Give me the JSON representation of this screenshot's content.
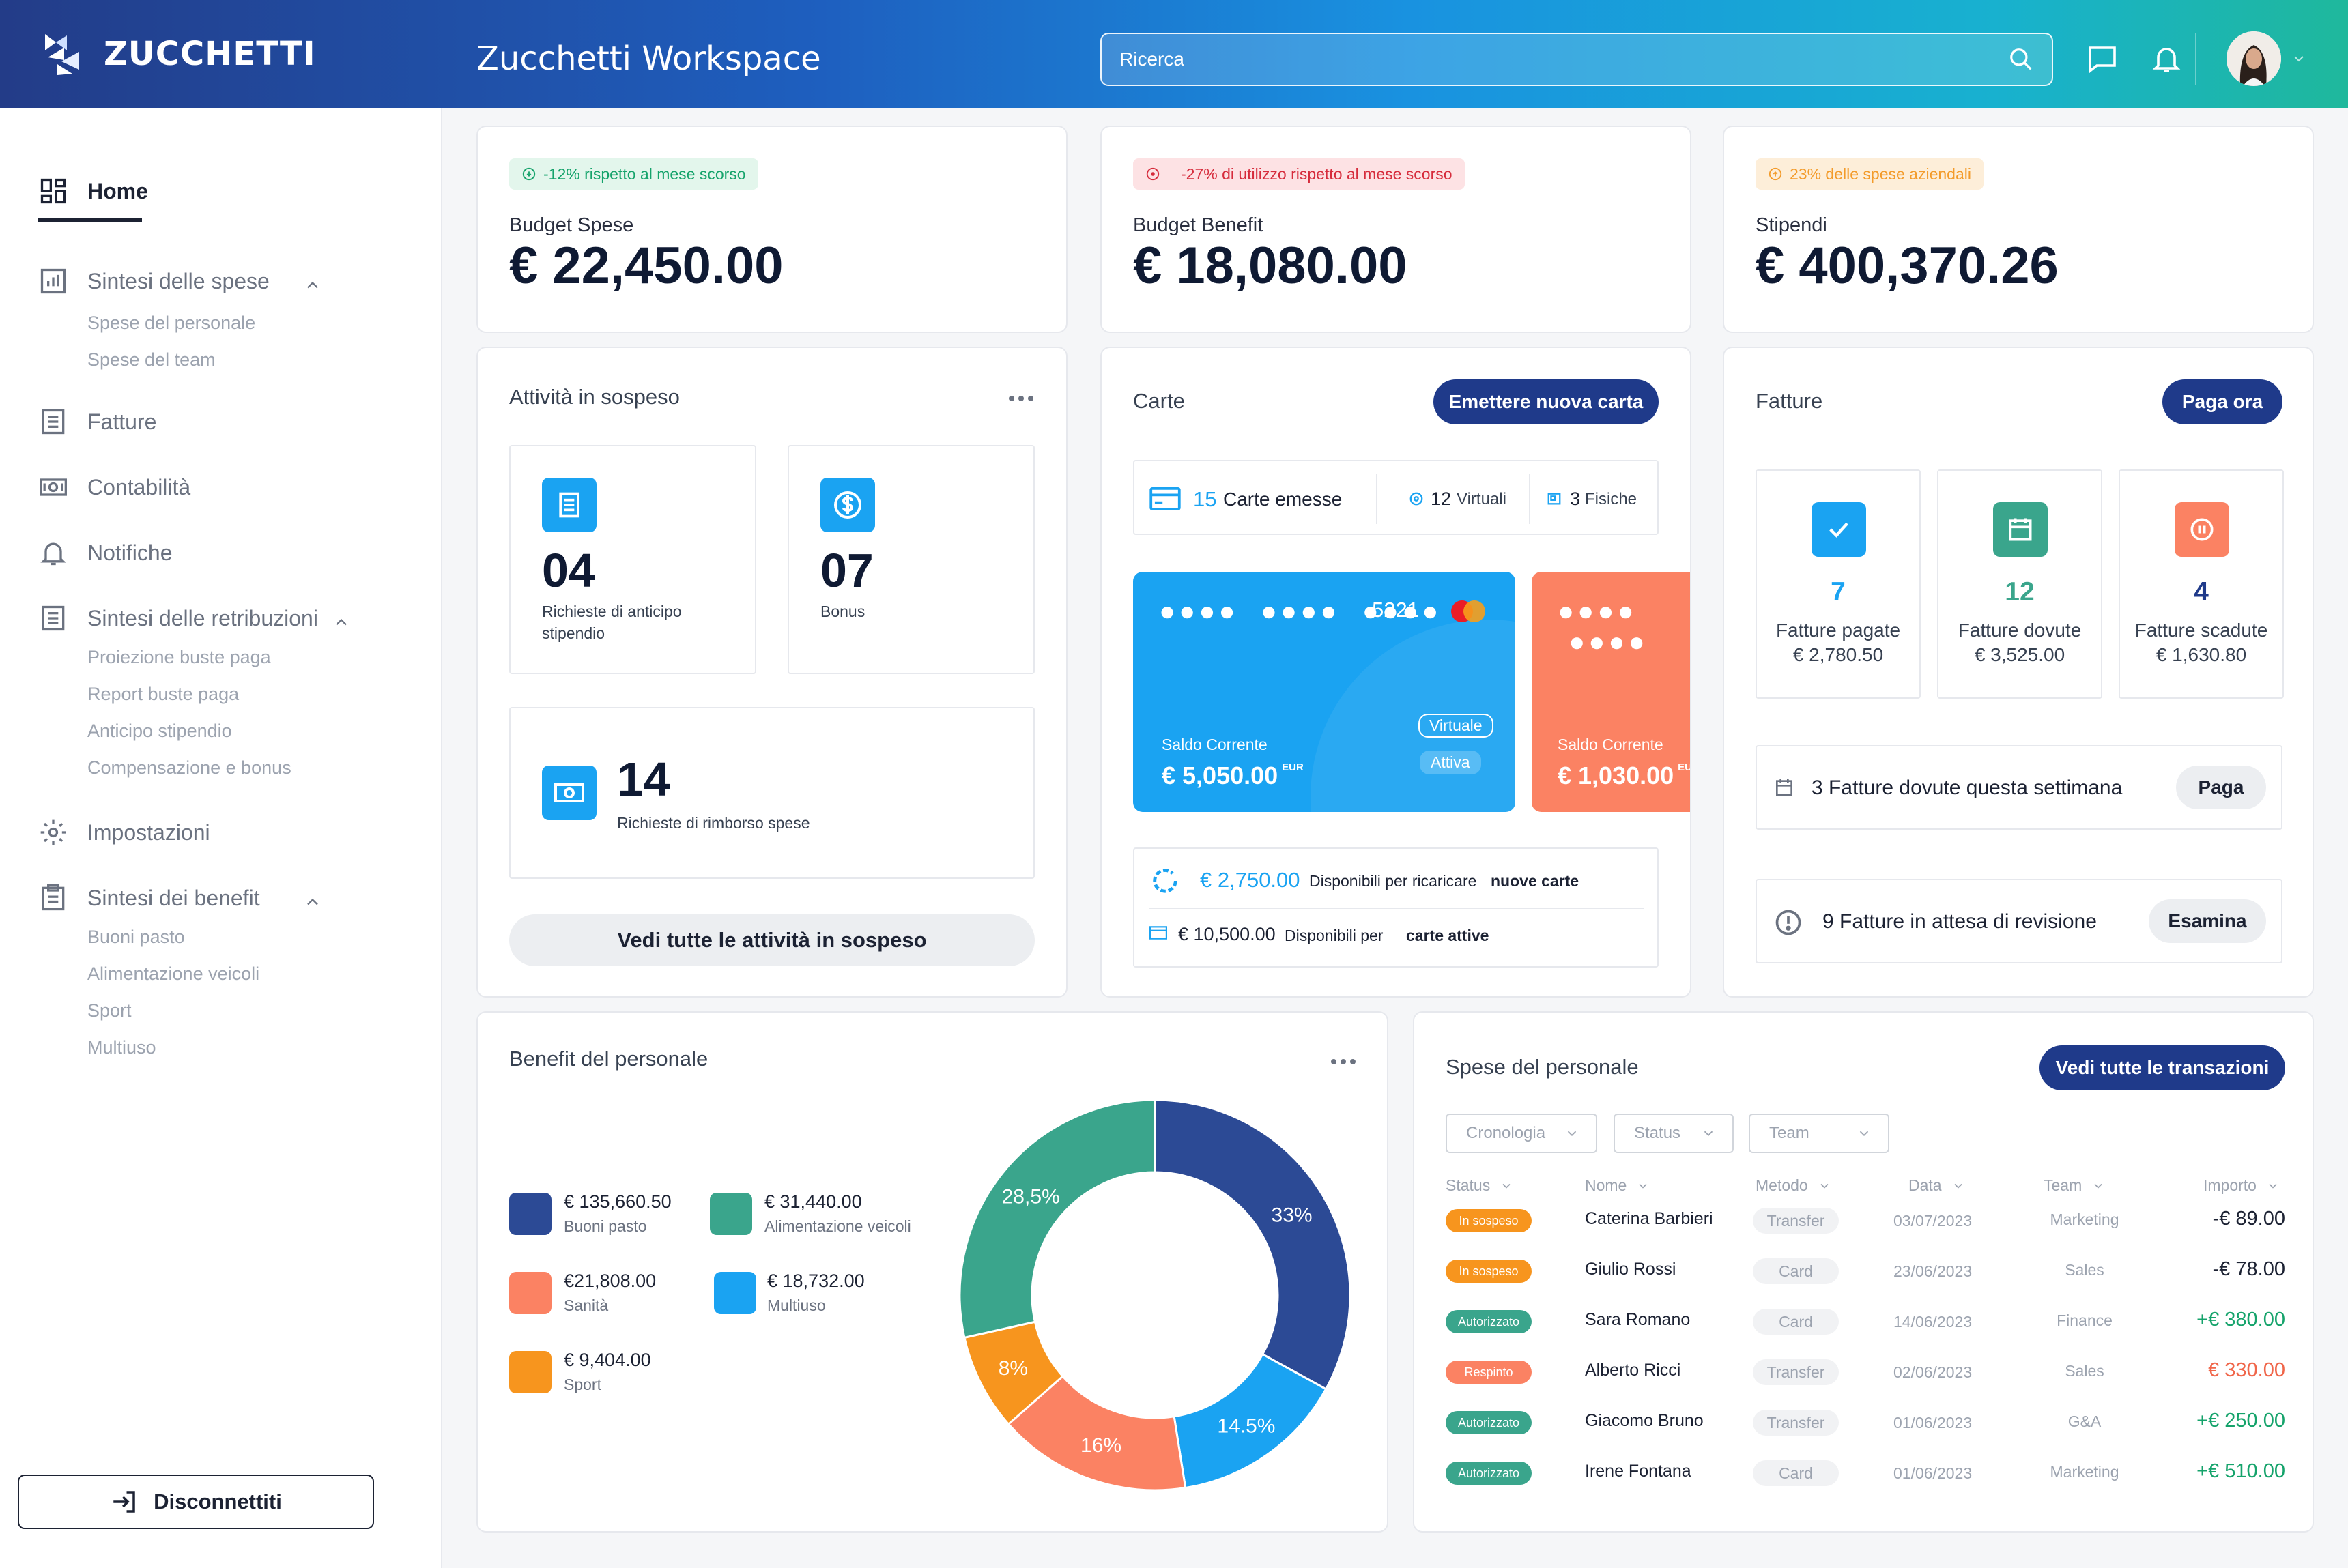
{
  "header": {
    "logo_text": "ZUCCHETTI",
    "app_title": "Zucchetti Workspace",
    "search_placeholder": "Ricerca"
  },
  "sidebar": {
    "home": "Home",
    "sintesi_spese": {
      "label": "Sintesi delle spese",
      "subs": [
        "Spese del personale",
        "Spese del team"
      ]
    },
    "fatture": "Fatture",
    "contabilita": "Contabilità",
    "notifiche": "Notifiche",
    "sintesi_retribuzioni": {
      "label": "Sintesi delle retribuzioni",
      "subs": [
        "Proiezione buste paga",
        "Report buste paga",
        "Anticipo stipendio",
        "Compensazione e bonus"
      ]
    },
    "impostazioni": "Impostazioni",
    "sintesi_benefit": {
      "label": "Sintesi dei benefit",
      "subs": [
        "Buoni pasto",
        "Alimentazione veicoli",
        "Sport",
        "Multiuso"
      ]
    },
    "logout": "Disconnettiti"
  },
  "stats": [
    {
      "badge": "-12% rispetto al mese scorso",
      "badge_color": "#15a36b",
      "badge_bg": "#e3f6ec",
      "label": "Budget Spese",
      "value": "€ 22,450.00"
    },
    {
      "badge": "-27% di utilizzo rispetto al mese scorso",
      "badge_color": "#d62c3c",
      "badge_bg": "#fde2e4",
      "label": "Budget Benefit",
      "value": "€ 18,080.00"
    },
    {
      "badge": "23% delle spese aziendali",
      "badge_color": "#f39b2a",
      "badge_bg": "#fdeed9",
      "label": "Stipendi",
      "value": "€ 400,370.26"
    }
  ],
  "attivita": {
    "title": "Attività in sospeso",
    "anticipo": {
      "num": "04",
      "label": "Richieste di anticipo stipendio"
    },
    "bonus": {
      "num": "07",
      "label": "Bonus"
    },
    "rimborso": {
      "num": "14",
      "label": "Richieste di rimborso spese"
    },
    "button": "Vedi tutte le attività in sospeso"
  },
  "carte": {
    "title": "Carte",
    "button": "Emettere nuova carta",
    "emesse_count": "15",
    "emesse_label": "Carte emesse",
    "virtuali_count": "12",
    "virtuali_label": "Virtuali",
    "fisiche_count": "3",
    "fisiche_label": "Fisiche",
    "card1": {
      "last4": "5221",
      "balance_label": "Saldo Corrente",
      "balance": "€ 5,050.00",
      "currency": "EUR",
      "tag1": "Virtuale",
      "tag2": "Attiva",
      "color": "#1aa3f2"
    },
    "card2": {
      "balance_label": "Saldo Corrente",
      "balance": "€ 1,030.00",
      "currency": "EUR",
      "color": "#fb8263"
    },
    "ricarica": {
      "amount": "€ 2,750.00",
      "text": "Disponibili per ricaricare",
      "bold": "nuove carte"
    },
    "attive": {
      "amount": "€ 10,500.00",
      "text": "Disponibili per",
      "bold": "carte attive"
    }
  },
  "fatture": {
    "title": "Fatture",
    "button": "Paga ora",
    "tiles": [
      {
        "num": "7",
        "label": "Fatture pagate",
        "amount": "€ 2,780.50",
        "color": "#1aa3f2"
      },
      {
        "num": "12",
        "label": "Fatture dovute",
        "amount": "€ 3,525.00",
        "color": "#3aa58c"
      },
      {
        "num": "4",
        "label": "Fatture scadute",
        "amount": "€ 1,630.80",
        "color": "#1f3a8a"
      }
    ],
    "settimana": {
      "text": "3 Fatture dovute questa settimana",
      "button": "Paga"
    },
    "revisione": {
      "text": "9 Fatture in attesa di revisione",
      "button": "Esamina"
    }
  },
  "benefit": {
    "title": "Benefit del personale",
    "legend": [
      {
        "value": "€ 135,660.50",
        "label": "Buoni pasto",
        "color": "#2c4a95"
      },
      {
        "value": "€ 31,440.00",
        "label": "Alimentazione veicoli",
        "color": "#3aa58c"
      },
      {
        "value": "€21,808.00",
        "label": "Sanità",
        "color": "#fb8263"
      },
      {
        "value": "€ 18,732.00",
        "label": "Multiuso",
        "color": "#1aa3f2"
      },
      {
        "value": "€ 9,404.00",
        "label": "Sport",
        "color": "#f7951e"
      }
    ],
    "donut": [
      {
        "label": "33%",
        "value": 33,
        "color": "#2c4a95"
      },
      {
        "label": "14.5%",
        "value": 14.5,
        "color": "#1aa3f2"
      },
      {
        "label": "16%",
        "value": 16,
        "color": "#fb8263"
      },
      {
        "label": "8%",
        "value": 8,
        "color": "#f7951e"
      },
      {
        "label": "28,5%",
        "value": 28.5,
        "color": "#3aa58c"
      }
    ]
  },
  "spese": {
    "title": "Spese del personale",
    "button": "Vedi tutte le transazioni",
    "filters": [
      "Cronologia",
      "Status",
      "Team"
    ],
    "columns": [
      "Status",
      "Nome",
      "Metodo",
      "Data",
      "Team",
      "Importo"
    ],
    "rows": [
      {
        "status": "In sospeso",
        "status_color": "#f7951e",
        "name": "Caterina Barbieri",
        "method": "Transfer",
        "date": "03/07/2023",
        "team": "Marketing",
        "amount": "-€ 89.00",
        "amount_color": "#1c2233"
      },
      {
        "status": "In sospeso",
        "status_color": "#f7951e",
        "name": "Giulio Rossi",
        "method": "Card",
        "date": "23/06/2023",
        "team": "Sales",
        "amount": "-€ 78.00",
        "amount_color": "#1c2233"
      },
      {
        "status": "Autorizzato",
        "status_color": "#3aa58c",
        "name": "Sara Romano",
        "method": "Card",
        "date": "14/06/2023",
        "team": "Finance",
        "amount": "+€ 380.00",
        "amount_color": "#15a36b"
      },
      {
        "status": "Respinto",
        "status_color": "#fb8263",
        "name": "Alberto Ricci",
        "method": "Transfer",
        "date": "02/06/2023",
        "team": "Sales",
        "amount": "€ 330.00",
        "amount_color": "#f0664a"
      },
      {
        "status": "Autorizzato",
        "status_color": "#3aa58c",
        "name": "Giacomo Bruno",
        "method": "Transfer",
        "date": "01/06/2023",
        "team": "G&A",
        "amount": "+€ 250.00",
        "amount_color": "#15a36b"
      },
      {
        "status": "Autorizzato",
        "status_color": "#3aa58c",
        "name": "Irene Fontana",
        "method": "Card",
        "date": "01/06/2023",
        "team": "Marketing",
        "amount": "+€ 510.00",
        "amount_color": "#15a36b"
      }
    ]
  }
}
